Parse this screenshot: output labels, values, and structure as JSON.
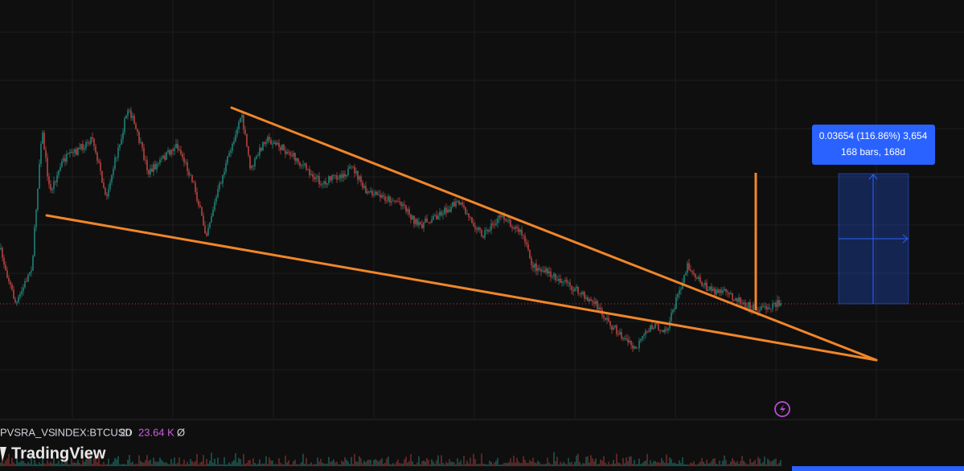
{
  "measure": {
    "line1": "0.03654 (116.86%) 3,654",
    "line2": "168 bars, 168d"
  },
  "legend": {
    "indicator": "PVSRA_VS",
    "symbol": "INDEX:BTCUSD",
    "length": "20",
    "volume": "23.64 K",
    "empty": "Ø"
  },
  "logo": {
    "text": "TradingView"
  }
}
